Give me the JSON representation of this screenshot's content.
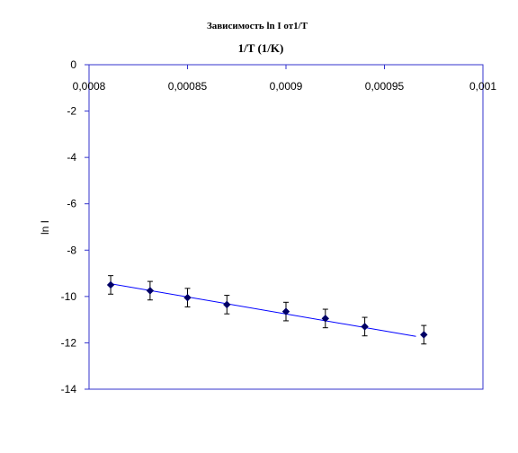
{
  "chart_data": {
    "type": "scatter",
    "title": "Зависимость ln I от1/T",
    "xlabel": "1/T (1/K)",
    "ylabel": "ln I",
    "xlim": [
      0.0008,
      0.001
    ],
    "ylim": [
      -14,
      0
    ],
    "x_ticks": [
      0.0008,
      0.00085,
      0.0009,
      0.00095,
      0.001
    ],
    "x_tick_labels": [
      "0,0008",
      "0,00085",
      "0,0009",
      "0,00095",
      "0,001"
    ],
    "y_ticks": [
      0,
      -2,
      -4,
      -6,
      -8,
      -10,
      -12,
      -14
    ],
    "y_tick_labels": [
      "0",
      "-2",
      "-4",
      "-6",
      "-8",
      "-10",
      "-12",
      "-14"
    ],
    "x_axis_position": "top",
    "grid": false,
    "series": [
      {
        "x": [
          0.000811,
          0.000831,
          0.00085,
          0.00087,
          0.0009,
          0.00092,
          0.00094,
          0.00097
        ],
        "y": [
          -9.5,
          -9.75,
          -10.05,
          -10.35,
          -10.65,
          -10.95,
          -11.3,
          -11.65
        ],
        "error": 0.4,
        "color": "#000066"
      }
    ],
    "trendline": {
      "x": [
        0.000811,
        0.000966
      ],
      "y": [
        -9.45,
        -11.72
      ],
      "color": "#0000ff"
    }
  }
}
